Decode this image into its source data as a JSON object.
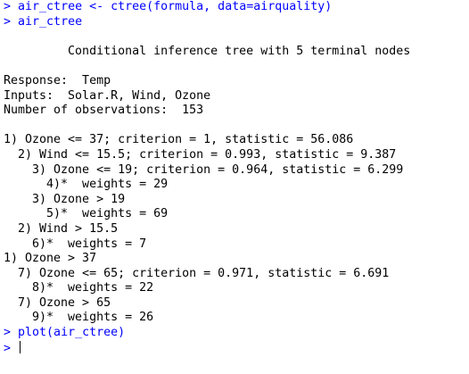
{
  "console": {
    "commands": [
      {
        "prompt": ">",
        "text": "air_ctree <- ctree(formula, data=airquality)"
      },
      {
        "prompt": ">",
        "text": "air_ctree"
      }
    ],
    "output": [
      "",
      "         Conditional inference tree with 5 terminal nodes",
      "",
      "Response:  Temp",
      "Inputs:  Solar.R, Wind, Ozone",
      "Number of observations:  153",
      "",
      "1) Ozone <= 37; criterion = 1, statistic = 56.086",
      "  2) Wind <= 15.5; criterion = 0.993, statistic = 9.387",
      "    3) Ozone <= 19; criterion = 0.964, statistic = 6.299",
      "      4)*  weights = 29",
      "    3) Ozone > 19",
      "      5)*  weights = 69",
      "  2) Wind > 15.5",
      "    6)*  weights = 7",
      "1) Ozone > 37",
      "  7) Ozone <= 65; criterion = 0.971, statistic = 6.691",
      "    8)*  weights = 22",
      "  7) Ozone > 65",
      "    9)*  weights = 26"
    ],
    "final_commands": [
      {
        "prompt": ">",
        "text": "plot(air_ctree)"
      },
      {
        "prompt": ">",
        "text": ""
      }
    ],
    "colors": {
      "input": "#0000ff",
      "output": "#000000",
      "background": "#ffffff"
    }
  }
}
